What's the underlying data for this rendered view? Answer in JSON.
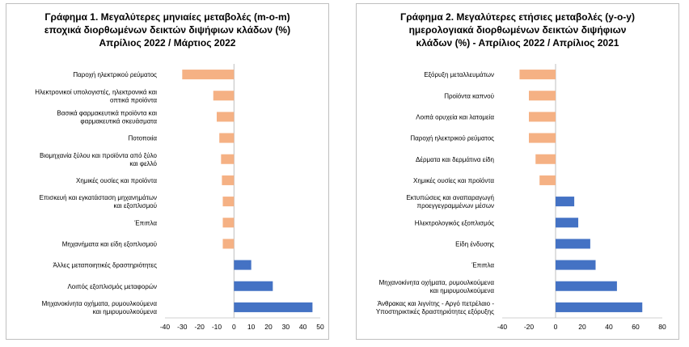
{
  "chart_data": [
    {
      "type": "bar",
      "orientation": "horizontal",
      "title_lines": [
        "Γράφημα 1. Μεγαλύτερες μηνιαίες μεταβολές (m-o-m)",
        "εποχικά διορθωμένων δεικτών διψήφιων κλάδων (%)",
        "Απρίλιος 2022 / Μάρτιος 2022"
      ],
      "categories": [
        [
          "Παροχή ηλεκτρικού ρεύματος"
        ],
        [
          "Ηλεκτρονικοί υπολογιστές, ηλεκτρονικά και",
          "οπτικά προϊόντα"
        ],
        [
          "Βασικά φαρμακευτικά προϊόντα και",
          "φαρμακευτικά σκευάσματα"
        ],
        [
          "Ποτοποιία"
        ],
        [
          "Βιομηχανία ξύλου και προϊόντα από ξύλο",
          "και φελλό"
        ],
        [
          "Χημικές ουσίες και προϊόντα"
        ],
        [
          "Επισκευή και εγκατάσταση μηχανημάτων",
          "και εξοπλισμού"
        ],
        [
          "Έπιπλα"
        ],
        [
          "Μηχανήματα και είδη εξοπλισμού"
        ],
        [
          "Άλλες μεταποιητικές δραστηριότητες"
        ],
        [
          "Λοιπός εξοπλισμός μεταφορών"
        ],
        [
          "Μηχανοκίνητα οχήματα, ρυμουλκούμενα",
          "και ημιρυμουλκούμενα"
        ]
      ],
      "values": [
        -30,
        -12,
        -10,
        -8.5,
        -7.5,
        -7,
        -6.5,
        -6.5,
        -6.5,
        10,
        22.5,
        45.5
      ],
      "xlim": [
        -40,
        50
      ],
      "xticks": [
        -40,
        -30,
        -20,
        -10,
        0,
        10,
        20,
        30,
        40,
        50
      ],
      "colors": {
        "negative": "#f5b184",
        "positive": "#4472c4"
      }
    },
    {
      "type": "bar",
      "orientation": "horizontal",
      "title_lines": [
        "Γράφημα 2. Μεγαλύτερες ετήσιες μεταβολές (y-o-y)",
        "ημερολογιακά διορθωμένων δεικτών διψήφιων",
        "κλάδων (%) - Απρίλιος 2022 / Απρίλιος 2021"
      ],
      "categories": [
        [
          "Εξόρυξη μεταλλευμάτων"
        ],
        [
          "Προϊόντα καπνού"
        ],
        [
          "Λοιπά ορυχεία και λατομεία"
        ],
        [
          "Παροχή ηλεκτρικού ρεύματος"
        ],
        [
          "Δέρματα και δερμάτινα είδη"
        ],
        [
          "Χημικές ουσίες και προϊόντα"
        ],
        [
          "Εκτυπώσεις και αναπαραγωγή",
          "προεγγεγραμμένων μέσων"
        ],
        [
          "Ηλεκτρολογικός εξοπλισμός"
        ],
        [
          "Είδη ένδυσης"
        ],
        [
          "Έπιπλα"
        ],
        [
          "Μηχανοκίνητα οχήματα, ρυμουλκούμενα",
          "και ημιρυμουλκούμενα"
        ],
        [
          "Άνθρακας και λιγνίτης - Αργό πετρέλαιο -",
          "Υποστηρικτικές δραστηριότητες εξόρυξης"
        ]
      ],
      "values": [
        -27,
        -20,
        -20,
        -20,
        -15,
        -12,
        14,
        17,
        26,
        30,
        46,
        65
      ],
      "xlim": [
        -40,
        80
      ],
      "xticks": [
        -40,
        -20,
        0,
        20,
        40,
        60,
        80
      ],
      "colors": {
        "negative": "#f5b184",
        "positive": "#4472c4"
      }
    }
  ]
}
